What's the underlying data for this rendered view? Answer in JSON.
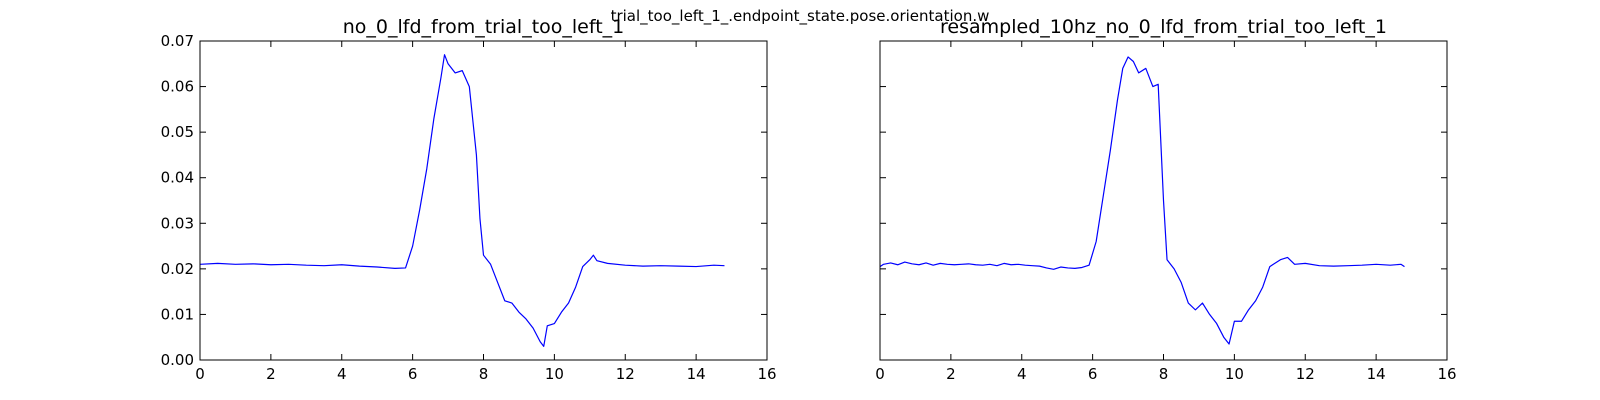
{
  "figure_title": "trial_too_left_1_.endpoint_state.pose.orientation.w",
  "chart_data": [
    {
      "type": "line",
      "title": "no_0_lfd_from_trial_too_left_1",
      "xlim": [
        0,
        16
      ],
      "ylim": [
        0,
        0.07
      ],
      "xticks": [
        "0",
        "2",
        "4",
        "6",
        "8",
        "10",
        "12",
        "14",
        "16"
      ],
      "yticks": [
        "0.00",
        "0.01",
        "0.02",
        "0.03",
        "0.04",
        "0.05",
        "0.06",
        "0.07"
      ],
      "show_yticklabels": true,
      "color": "#0000ff",
      "x": [
        0,
        0.5,
        1,
        1.5,
        2,
        2.5,
        3,
        3.5,
        4,
        4.5,
        5,
        5.5,
        5.8,
        6.0,
        6.2,
        6.4,
        6.6,
        6.8,
        6.9,
        7.0,
        7.2,
        7.4,
        7.6,
        7.8,
        7.9,
        8.0,
        8.2,
        8.4,
        8.6,
        8.8,
        9.0,
        9.2,
        9.4,
        9.6,
        9.7,
        9.8,
        10.0,
        10.2,
        10.4,
        10.6,
        10.8,
        11.0,
        11.1,
        11.2,
        11.5,
        12,
        12.5,
        13,
        13.5,
        14,
        14.5,
        14.8
      ],
      "y": [
        0.021,
        0.0212,
        0.021,
        0.0211,
        0.0209,
        0.021,
        0.0208,
        0.0207,
        0.0209,
        0.0206,
        0.0204,
        0.0201,
        0.0202,
        0.025,
        0.033,
        0.042,
        0.053,
        0.062,
        0.067,
        0.065,
        0.063,
        0.0635,
        0.06,
        0.045,
        0.031,
        0.023,
        0.021,
        0.017,
        0.013,
        0.0125,
        0.0105,
        0.009,
        0.007,
        0.004,
        0.003,
        0.0075,
        0.008,
        0.0105,
        0.0125,
        0.016,
        0.0205,
        0.022,
        0.023,
        0.0218,
        0.0212,
        0.0208,
        0.0206,
        0.0207,
        0.0206,
        0.0205,
        0.0208,
        0.0207
      ]
    },
    {
      "type": "line",
      "title": "resampled_10hz_no_0_lfd_from_trial_too_left_1",
      "xlim": [
        0,
        16
      ],
      "ylim": [
        0,
        0.07
      ],
      "xticks": [
        "0",
        "2",
        "4",
        "6",
        "8",
        "10",
        "12",
        "14",
        "16"
      ],
      "yticks": [
        "0.00",
        "0.01",
        "0.02",
        "0.03",
        "0.04",
        "0.05",
        "0.06",
        "0.07"
      ],
      "show_yticklabels": false,
      "color": "#0000ff",
      "x": [
        0,
        0.1,
        0.3,
        0.5,
        0.7,
        0.9,
        1.1,
        1.3,
        1.5,
        1.7,
        1.9,
        2.1,
        2.3,
        2.5,
        2.7,
        2.9,
        3.1,
        3.3,
        3.5,
        3.7,
        3.9,
        4.1,
        4.3,
        4.5,
        4.7,
        4.9,
        5.1,
        5.3,
        5.5,
        5.7,
        5.9,
        6.1,
        6.3,
        6.5,
        6.7,
        6.85,
        7.0,
        7.15,
        7.3,
        7.5,
        7.7,
        7.85,
        8.0,
        8.1,
        8.3,
        8.5,
        8.7,
        8.9,
        9.1,
        9.3,
        9.5,
        9.7,
        9.85,
        10.0,
        10.2,
        10.4,
        10.6,
        10.8,
        11.0,
        11.1,
        11.3,
        11.5,
        11.7,
        12.0,
        12.4,
        12.8,
        13.2,
        13.6,
        14.0,
        14.4,
        14.7,
        14.8
      ],
      "y": [
        0.0205,
        0.021,
        0.0213,
        0.0209,
        0.0215,
        0.0211,
        0.0209,
        0.0213,
        0.0208,
        0.0212,
        0.021,
        0.0209,
        0.021,
        0.0211,
        0.0209,
        0.0208,
        0.021,
        0.0207,
        0.0212,
        0.0209,
        0.021,
        0.0208,
        0.0207,
        0.0206,
        0.0202,
        0.0199,
        0.0204,
        0.0202,
        0.0201,
        0.0203,
        0.0208,
        0.026,
        0.036,
        0.046,
        0.057,
        0.064,
        0.0665,
        0.0655,
        0.063,
        0.064,
        0.06,
        0.0605,
        0.035,
        0.022,
        0.02,
        0.017,
        0.0125,
        0.011,
        0.0125,
        0.01,
        0.008,
        0.005,
        0.0035,
        0.0085,
        0.0085,
        0.011,
        0.013,
        0.016,
        0.0205,
        0.021,
        0.022,
        0.0225,
        0.021,
        0.0212,
        0.0207,
        0.0206,
        0.0207,
        0.0208,
        0.021,
        0.0208,
        0.021,
        0.0205
      ]
    }
  ]
}
